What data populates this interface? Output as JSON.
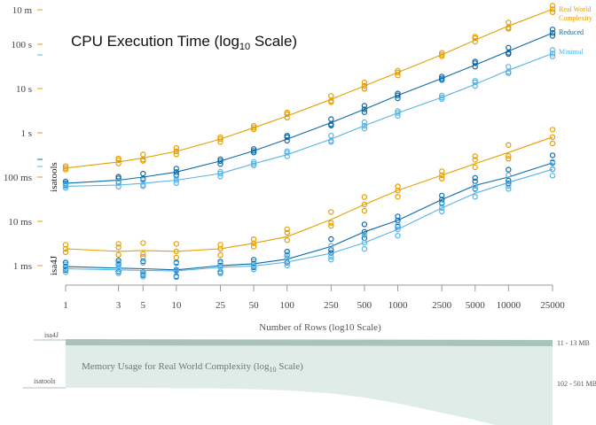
{
  "chart_data": {
    "type": "line",
    "title": "CPU Execution Time (log",
    "title_sub": "10",
    "title_end": " Scale)",
    "xlabel": "Number of Rows (log10 Scale)",
    "x_scale": "log",
    "y_scale": "log",
    "x_ticks": [
      1,
      3,
      5,
      10,
      25,
      50,
      100,
      250,
      500,
      1000,
      2500,
      5000,
      10000,
      25000
    ],
    "x_tick_labels": [
      "1",
      "3",
      "5",
      "10",
      "25",
      "50",
      "100",
      "250",
      "500",
      "1000",
      "2500",
      "5000",
      "10000",
      "25000"
    ],
    "y_ticks": [
      0.001,
      0.01,
      0.1,
      1,
      10,
      100,
      600
    ],
    "y_tick_labels": [
      "1 ms",
      "10 ms",
      "100 ms",
      "1 s",
      "10 s",
      "100 s",
      "10 m"
    ],
    "y_units": "seconds",
    "ylim": [
      0.00045,
      700
    ],
    "grid": false,
    "legend_position": "top-right",
    "groups": [
      {
        "label": "isatools",
        "x": [
          1,
          3,
          5,
          10,
          25,
          50,
          100,
          250,
          500,
          1000,
          2500,
          5000,
          10000,
          25000
        ]
      },
      {
        "label": "isa4J",
        "x": [
          1,
          3,
          5,
          10,
          25,
          50,
          100,
          250,
          500,
          1000,
          2500,
          5000,
          10000,
          25000
        ]
      }
    ],
    "series": [
      {
        "name": "Real World Complexity",
        "group": "isatools",
        "color": "#e69f00",
        "values": [
          0.16,
          0.22,
          0.27,
          0.38,
          0.72,
          1.3,
          2.4,
          5.7,
          11.5,
          23,
          58,
          125,
          260,
          620
        ]
      },
      {
        "name": "Reduced",
        "group": "isatools",
        "color": "#0a6aa8",
        "values": [
          0.072,
          0.085,
          0.1,
          0.13,
          0.23,
          0.39,
          0.72,
          1.7,
          3.4,
          7,
          17,
          34,
          70,
          180
        ]
      },
      {
        "name": "Minimal",
        "group": "isatools",
        "color": "#56b4e9",
        "values": [
          0.062,
          0.066,
          0.072,
          0.085,
          0.12,
          0.2,
          0.32,
          0.72,
          1.45,
          2.8,
          6.3,
          12.5,
          26,
          62
        ]
      },
      {
        "name": "Real World Complexity",
        "group": "isa4J",
        "color": "#e69f00",
        "values": [
          0.0024,
          0.0021,
          0.0022,
          0.0021,
          0.0024,
          0.0032,
          0.0045,
          0.011,
          0.024,
          0.05,
          0.11,
          0.2,
          0.36,
          0.8
        ]
      },
      {
        "name": "Reduced",
        "group": "isa4J",
        "color": "#0a6aa8",
        "values": [
          0.00095,
          0.00088,
          0.00085,
          0.0008,
          0.001,
          0.0011,
          0.0014,
          0.0027,
          0.0058,
          0.0105,
          0.031,
          0.065,
          0.1,
          0.21
        ]
      },
      {
        "name": "Minimal",
        "group": "isa4J",
        "color": "#56b4e9",
        "values": [
          0.00085,
          0.0008,
          0.00078,
          0.00076,
          0.00092,
          0.00098,
          0.0012,
          0.0019,
          0.0033,
          0.0066,
          0.02,
          0.043,
          0.075,
          0.15
        ]
      }
    ],
    "memory_panel": {
      "title": "Memory Usage for Real World Complexity (log",
      "title_sub": "10",
      "title_end": " Scale)",
      "isa4J_label": "isa4J",
      "isatools_label": "isatools",
      "isa4J_range": "11 - 13 MB",
      "isatools_range": "102 - 501 MB",
      "colors": {
        "isa4J_band": "#a9c3bc",
        "isatools_band": "#dfece8"
      },
      "isatools_memory_mb": [
        102,
        102,
        102,
        103,
        104,
        106,
        110,
        120,
        135,
        160,
        210,
        260,
        330,
        501
      ]
    }
  }
}
